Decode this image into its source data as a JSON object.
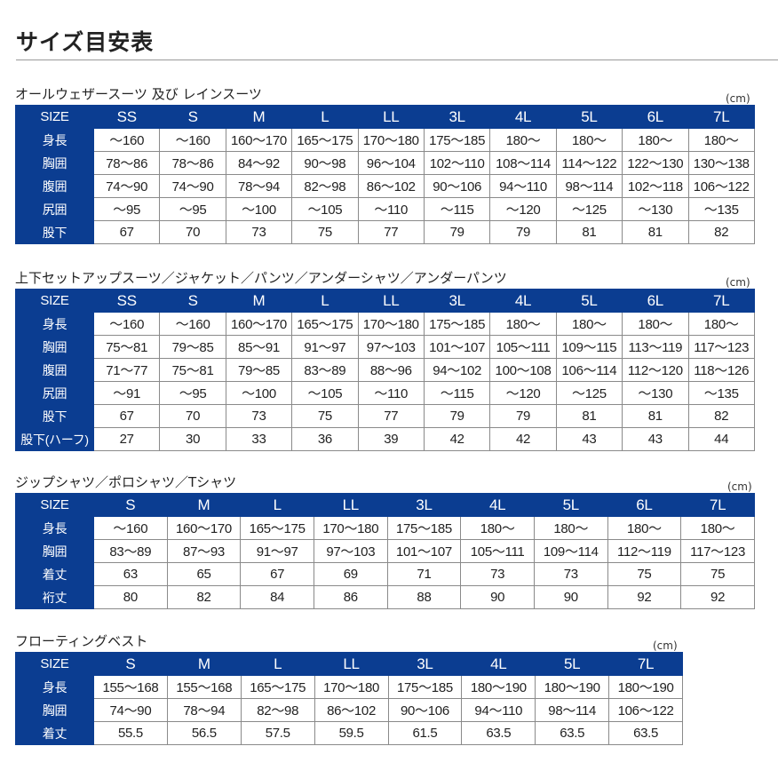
{
  "page_title": "サイズ目安表",
  "colors": {
    "header_bg": "#0b3d91",
    "header_text": "#ffffff"
  },
  "sections": [
    {
      "title": "オールウェザースーツ 及び レインスーツ",
      "unit": "(cm)",
      "header": [
        "SIZE",
        "SS",
        "S",
        "M",
        "L",
        "LL",
        "3L",
        "4L",
        "5L",
        "6L",
        "7L"
      ],
      "rows": [
        {
          "label": "身長",
          "values": [
            "～160",
            "～160",
            "160～170",
            "165～175",
            "170～180",
            "175～185",
            "180～",
            "180～",
            "180～",
            "180～"
          ]
        },
        {
          "label": "胸囲",
          "values": [
            "78～86",
            "78～86",
            "84～92",
            "90～98",
            "96～104",
            "102～110",
            "108～114",
            "114～122",
            "122～130",
            "130～138"
          ]
        },
        {
          "label": "腹囲",
          "values": [
            "74～90",
            "74～90",
            "78～94",
            "82～98",
            "86～102",
            "90～106",
            "94～110",
            "98～114",
            "102～118",
            "106～122"
          ]
        },
        {
          "label": "尻囲",
          "values": [
            "～95",
            "～95",
            "～100",
            "～105",
            "～110",
            "～115",
            "～120",
            "～125",
            "～130",
            "～135"
          ]
        },
        {
          "label": "股下",
          "values": [
            "67",
            "70",
            "73",
            "75",
            "77",
            "79",
            "79",
            "81",
            "81",
            "82"
          ]
        }
      ]
    },
    {
      "title": "上下セットアップスーツ／ジャケット／パンツ／アンダーシャツ／アンダーパンツ",
      "unit": "(cm)",
      "header": [
        "SIZE",
        "SS",
        "S",
        "M",
        "L",
        "LL",
        "3L",
        "4L",
        "5L",
        "6L",
        "7L"
      ],
      "rows": [
        {
          "label": "身長",
          "values": [
            "～160",
            "～160",
            "160～170",
            "165～175",
            "170～180",
            "175～185",
            "180～",
            "180～",
            "180～",
            "180～"
          ]
        },
        {
          "label": "胸囲",
          "values": [
            "75～81",
            "79～85",
            "85～91",
            "91～97",
            "97～103",
            "101～107",
            "105～111",
            "109～115",
            "113～119",
            "117～123"
          ]
        },
        {
          "label": "腹囲",
          "values": [
            "71～77",
            "75～81",
            "79～85",
            "83～89",
            "88～96",
            "94～102",
            "100～108",
            "106～114",
            "112～120",
            "118～126"
          ]
        },
        {
          "label": "尻囲",
          "values": [
            "～91",
            "～95",
            "～100",
            "～105",
            "～110",
            "～115",
            "～120",
            "～125",
            "～130",
            "～135"
          ]
        },
        {
          "label": "股下",
          "values": [
            "67",
            "70",
            "73",
            "75",
            "77",
            "79",
            "79",
            "81",
            "81",
            "82"
          ]
        },
        {
          "label": "股下(ハーフ)",
          "values": [
            "27",
            "30",
            "33",
            "36",
            "39",
            "42",
            "42",
            "43",
            "43",
            "44"
          ]
        }
      ]
    },
    {
      "title": "ジップシャツ／ポロシャツ／Tシャツ",
      "unit": "(cm)",
      "header": [
        "SIZE",
        "S",
        "M",
        "L",
        "LL",
        "3L",
        "4L",
        "5L",
        "6L",
        "7L"
      ],
      "rows": [
        {
          "label": "身長",
          "values": [
            "～160",
            "160～170",
            "165～175",
            "170～180",
            "175～185",
            "180～",
            "180～",
            "180～",
            "180～"
          ]
        },
        {
          "label": "胸囲",
          "values": [
            "83～89",
            "87～93",
            "91～97",
            "97～103",
            "101～107",
            "105～111",
            "109～114",
            "112～119",
            "117～123"
          ]
        },
        {
          "label": "着丈",
          "values": [
            "63",
            "65",
            "67",
            "69",
            "71",
            "73",
            "73",
            "75",
            "75"
          ]
        },
        {
          "label": "裄丈",
          "values": [
            "80",
            "82",
            "84",
            "86",
            "88",
            "90",
            "90",
            "92",
            "92"
          ]
        }
      ]
    },
    {
      "title": "フローティングベスト",
      "unit": "(cm)",
      "header": [
        "SIZE",
        "S",
        "M",
        "L",
        "LL",
        "3L",
        "4L",
        "5L",
        "7L"
      ],
      "rows": [
        {
          "label": "身長",
          "values": [
            "155～168",
            "155～168",
            "165～175",
            "170～180",
            "175～185",
            "180～190",
            "180～190",
            "180～190"
          ]
        },
        {
          "label": "胸囲",
          "values": [
            "74～90",
            "78～94",
            "82～98",
            "86～102",
            "90～106",
            "94～110",
            "98～114",
            "106～122"
          ]
        },
        {
          "label": "着丈",
          "values": [
            "55.5",
            "56.5",
            "57.5",
            "59.5",
            "61.5",
            "63.5",
            "63.5",
            "63.5"
          ]
        }
      ]
    }
  ]
}
